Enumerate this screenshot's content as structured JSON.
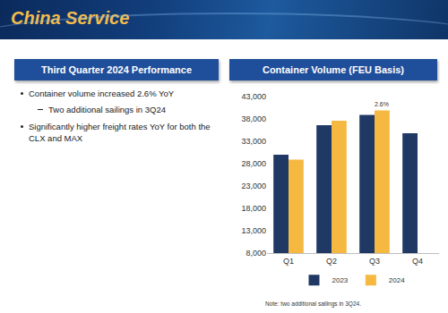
{
  "header": {
    "title": "China Service"
  },
  "left_panel": {
    "title": "Third Quarter 2024 Performance",
    "bullets": [
      {
        "text": "Container volume increased 2.6% YoY",
        "sub": [
          "Two additional sailings in 3Q24"
        ]
      },
      {
        "text": "Significantly higher freight rates YoY for both the CLX and MAX",
        "sub": []
      }
    ]
  },
  "chart_data": {
    "type": "bar",
    "title": "Container Volume (FEU Basis)",
    "categories": [
      "Q1",
      "Q2",
      "Q3",
      "Q4"
    ],
    "series": [
      {
        "name": "2023",
        "color": "#1f3864",
        "values": [
          30000,
          36600,
          38900,
          34800
        ]
      },
      {
        "name": "2024",
        "color": "#f5b942",
        "values": [
          28900,
          37600,
          39900,
          null
        ]
      }
    ],
    "ylim": [
      8000,
      43000
    ],
    "yticks": [
      {
        "value": 8000,
        "label": "8,000"
      },
      {
        "value": 13000,
        "label": "13,000"
      },
      {
        "value": 18000,
        "label": "18,000"
      },
      {
        "value": 23000,
        "label": "23,000"
      },
      {
        "value": 28000,
        "label": "28,000"
      },
      {
        "value": 33000,
        "label": "33,000"
      },
      {
        "value": 38000,
        "label": "38,000"
      },
      {
        "value": 43000,
        "label": "43,000"
      }
    ],
    "grid": false,
    "legend": "bottom",
    "annotations": [
      {
        "category": "Q3",
        "series": "2024",
        "text": "2.6%"
      }
    ]
  },
  "footnote": "Note: two additional sailings in 3Q24."
}
